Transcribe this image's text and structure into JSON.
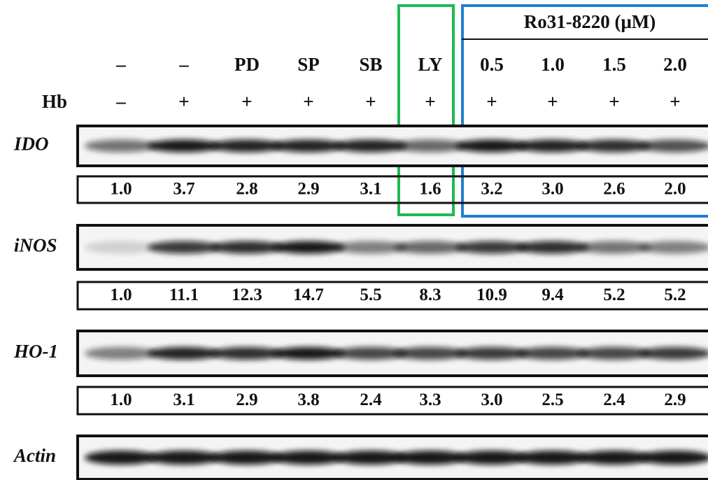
{
  "header": {
    "group_label": "Ro31-8220 (μM)",
    "treatments": [
      "–",
      "–",
      "PD",
      "SP",
      "SB",
      "LY",
      "0.5",
      "1.0",
      "1.5",
      "2.0"
    ],
    "hb_label": "Hb",
    "hb": [
      "–",
      "+",
      "+",
      "+",
      "+",
      "+",
      "+",
      "+",
      "+",
      "+"
    ]
  },
  "blots": [
    {
      "label": "IDO",
      "quantification": [
        "1.0",
        "3.7",
        "2.8",
        "2.9",
        "3.1",
        "1.6",
        "3.2",
        "3.0",
        "2.6",
        "2.0"
      ]
    },
    {
      "label": "iNOS",
      "quantification": [
        "1.0",
        "11.1",
        "12.3",
        "14.7",
        "5.5",
        "8.3",
        "10.9",
        "9.4",
        "5.2",
        "5.2"
      ]
    },
    {
      "label": "HO-1",
      "quantification": [
        "1.0",
        "3.1",
        "2.9",
        "3.8",
        "2.4",
        "3.3",
        "3.0",
        "2.5",
        "2.4",
        "2.9"
      ]
    },
    {
      "label": "Actin"
    }
  ]
}
